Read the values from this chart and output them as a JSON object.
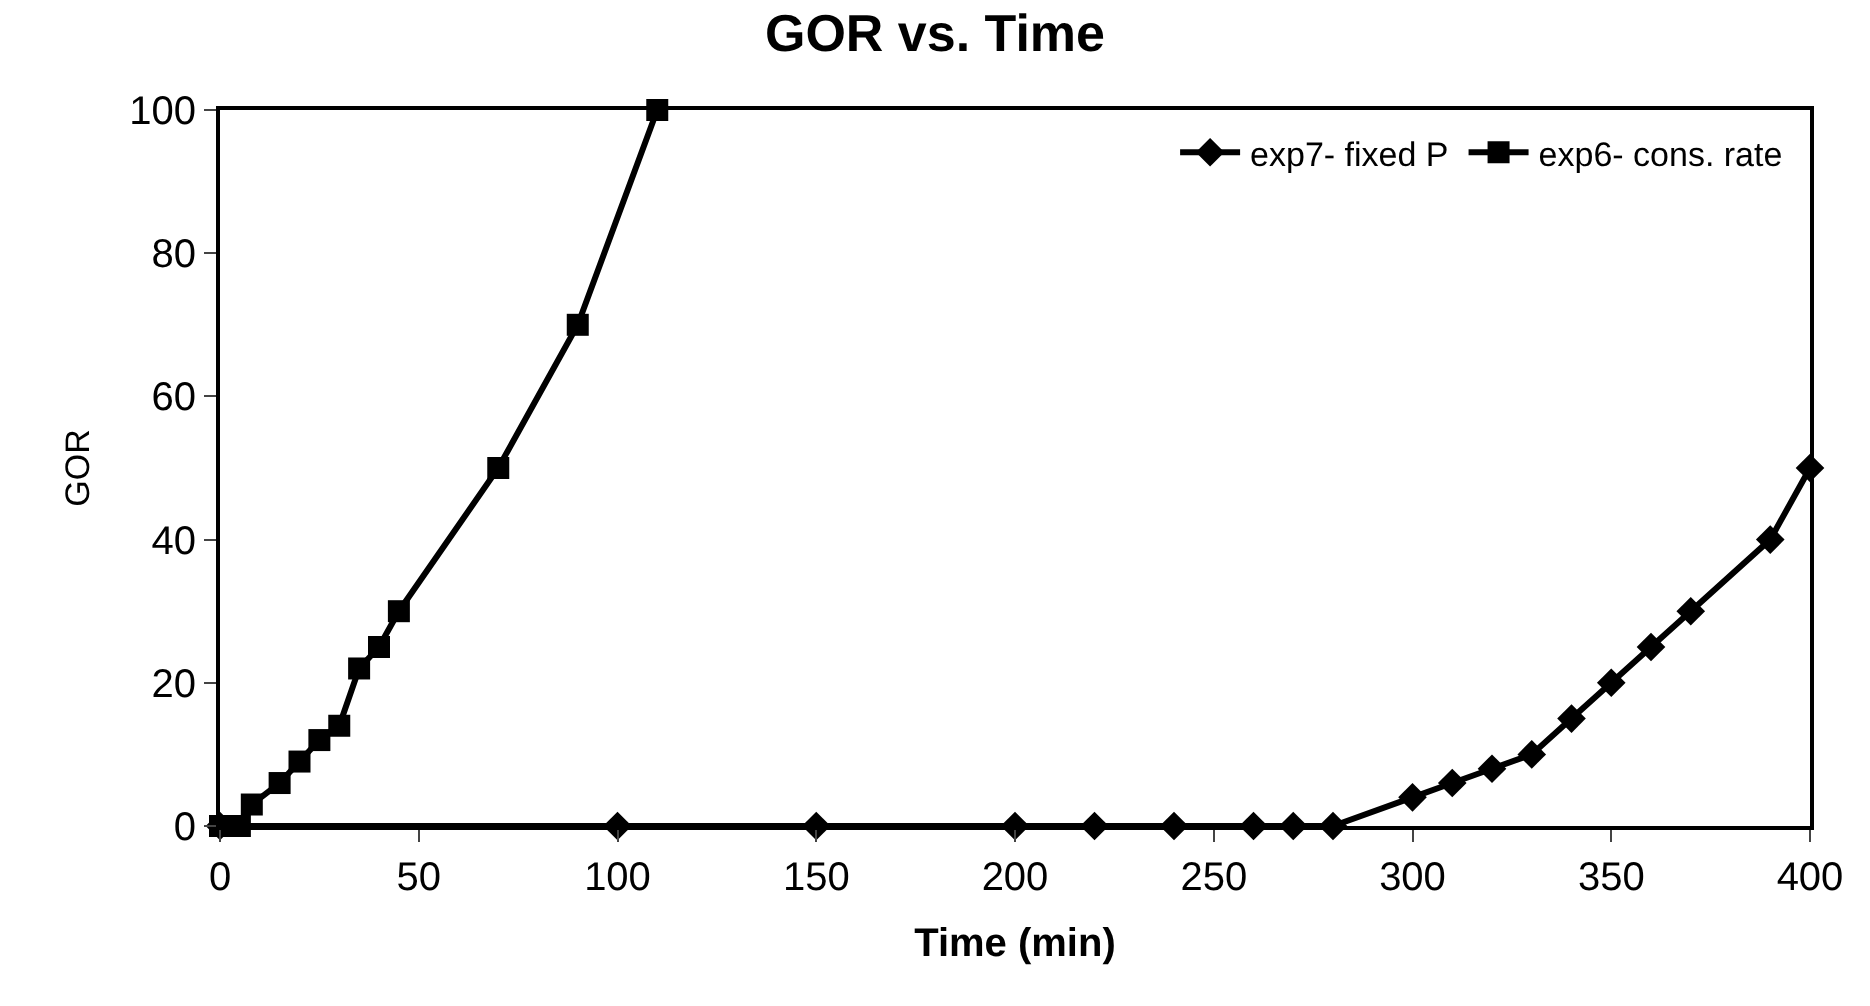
{
  "chart_data": {
    "type": "line",
    "title": "GOR vs. Time",
    "xlabel": "Time (min)",
    "ylabel": "GOR",
    "xlim": [
      0,
      400
    ],
    "xticks": [
      0,
      50,
      100,
      150,
      200,
      250,
      300,
      350,
      400
    ],
    "ylim": [
      0,
      100
    ],
    "yticks": [
      0,
      20,
      40,
      60,
      80,
      100
    ],
    "legend": "top right",
    "line_style": "solid",
    "series": [
      {
        "name": "exp7- fixed P",
        "color": "#000000",
        "marker": "diamond",
        "x": [
          0,
          100,
          150,
          200,
          220,
          240,
          260,
          270,
          280,
          300,
          310,
          320,
          330,
          340,
          350,
          360,
          370,
          390,
          400
        ],
        "values": [
          0,
          0,
          0,
          0,
          0,
          0,
          0,
          0,
          0,
          4,
          6,
          8,
          10,
          15,
          20,
          25,
          30,
          40,
          50
        ]
      },
      {
        "name": "exp6- cons. rate",
        "color": "#000000",
        "marker": "square",
        "x": [
          0,
          5,
          8,
          15,
          20,
          25,
          30,
          35,
          40,
          45,
          70,
          90,
          110
        ],
        "values": [
          0,
          0,
          3,
          6,
          9,
          12,
          14,
          22,
          25,
          30,
          50,
          70,
          100
        ]
      }
    ]
  }
}
